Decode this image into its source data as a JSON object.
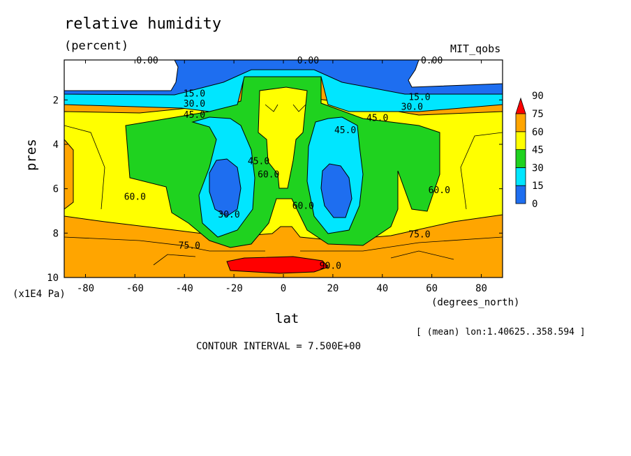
{
  "chart_data": {
    "type": "contour",
    "title": "relative humidity",
    "units": "(percent)",
    "dataset": "MIT_qobs",
    "xlabel": "lat",
    "xunits": "(degrees_north)",
    "ylabel": "pres",
    "yunits": "(x1E4 Pa)",
    "xlim": [
      -88.6,
      88.6
    ],
    "ylim": [
      10,
      0.2
    ],
    "x_ticks": [
      -80,
      -60,
      -40,
      -20,
      0,
      20,
      40,
      60,
      80
    ],
    "y_ticks": [
      2,
      4,
      6,
      8,
      10
    ],
    "averaging_note": "[ (mean) lon:1.40625..358.594 ]",
    "contour_interval_note": "CONTOUR INTERVAL = 7.500E+00",
    "contour_interval": 7.5,
    "colorbar": {
      "levels": [
        0,
        15,
        30,
        45,
        60,
        75,
        90
      ],
      "colors": [
        "#1e6ef0",
        "#00e6ff",
        "#1fd21f",
        "#ffff00",
        "#ffa500",
        "#ff0000"
      ],
      "labels": [
        "0",
        "15",
        "30",
        "45",
        "60",
        "75",
        "90"
      ]
    },
    "contour_labels": [
      {
        "text": "0.00",
        "lat": -55,
        "pres": 0.35
      },
      {
        "text": "0.00",
        "lat": 10,
        "pres": 0.35
      },
      {
        "text": "0.00",
        "lat": 60,
        "pres": 0.35
      },
      {
        "text": "15.0",
        "lat": -36,
        "pres": 1.85
      },
      {
        "text": "30.0",
        "lat": -36,
        "pres": 2.3
      },
      {
        "text": "45.0",
        "lat": -36,
        "pres": 2.8
      },
      {
        "text": "15.0",
        "lat": 55,
        "pres": 2.0
      },
      {
        "text": "30.0",
        "lat": 52,
        "pres": 2.45
      },
      {
        "text": "45.0",
        "lat": 38,
        "pres": 2.95
      },
      {
        "text": "45.0",
        "lat": 25,
        "pres": 3.5
      },
      {
        "text": "45.0",
        "lat": -10,
        "pres": 4.9
      },
      {
        "text": "60.0",
        "lat": -6,
        "pres": 5.5
      },
      {
        "text": "60.0",
        "lat": -60,
        "pres": 6.5
      },
      {
        "text": "60.0",
        "lat": 63,
        "pres": 6.2
      },
      {
        "text": "60.0",
        "lat": 8,
        "pres": 6.9
      },
      {
        "text": "30.0",
        "lat": -22,
        "pres": 7.3
      },
      {
        "text": "75.0",
        "lat": -38,
        "pres": 8.7
      },
      {
        "text": "75.0",
        "lat": 55,
        "pres": 8.2
      },
      {
        "text": "90.0",
        "lat": 19,
        "pres": 9.6
      }
    ]
  }
}
